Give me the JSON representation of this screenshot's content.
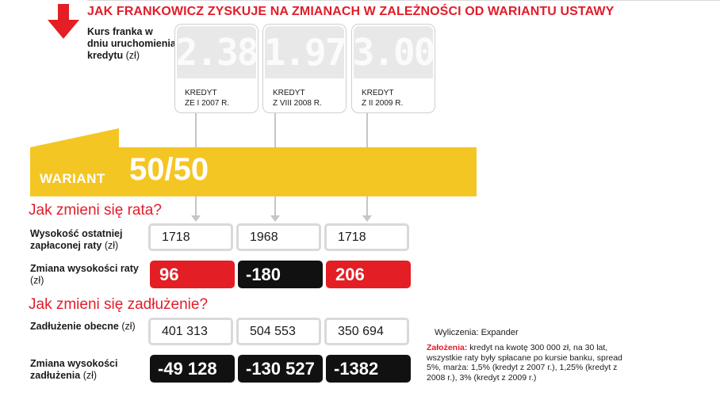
{
  "title": "JAK FRANKOWICZ  ZYSKUJE NA ZMIANACH W ZALEŻNOŚCI OD WARIANTU USTAWY",
  "exchange_rate_label": {
    "text": "Kurs franka w dniu uruchomienia kredytu",
    "unit": "(zł)"
  },
  "loans": [
    {
      "rate": "2.38",
      "caption_line1": "KREDYT",
      "caption_line2": "ZE I 2007 R."
    },
    {
      "rate": "1.97",
      "caption_line1": "KREDYT",
      "caption_line2": "Z VIII 2008 R."
    },
    {
      "rate": "3.00",
      "caption_line1": "KREDYT",
      "caption_line2": "Z II 2009 R."
    }
  ],
  "variant": {
    "label": "WARIANT",
    "value": "50/50"
  },
  "section_rate": "Jak zmieni się rata?",
  "section_debt": "Jak zmieni się zadłużenie?",
  "rows": {
    "last_rate": {
      "label": "Wysokość ostatniej zapłaconej raty",
      "unit": "(zł)",
      "values": [
        "1718",
        "1968",
        "1718"
      ]
    },
    "rate_change": {
      "label": "Zmiana wysokości raty",
      "unit": "(zł)",
      "values": [
        "96",
        "-180",
        "206"
      ]
    },
    "current_debt": {
      "label": "Zadłużenie obecne",
      "unit": "(zł)",
      "values": [
        "401 313",
        "504 553",
        "350 694"
      ]
    },
    "debt_change": {
      "label": "Zmiana wysokości zadłużenia",
      "unit": "(zł)",
      "values": [
        "-49 128",
        "-130 527",
        "-1382"
      ]
    }
  },
  "source": "Wyliczenia: Expander",
  "notes": {
    "label": "Założenia:",
    "text": "kredyt na kwotę 300 000 zł, na 30 lat, wszystkie raty były spłacane po kursie banku, spread 5%, marża: 1,5% (kredyt z 2007 r.), 1,25% (kredyt z 2008 r.), 3% (kredyt z 2009 r.)"
  },
  "colors": {
    "accent_red": "#e31e24",
    "banner_yellow": "#f4c623",
    "dark": "#111111",
    "grey_card": "#e8e8e8"
  }
}
